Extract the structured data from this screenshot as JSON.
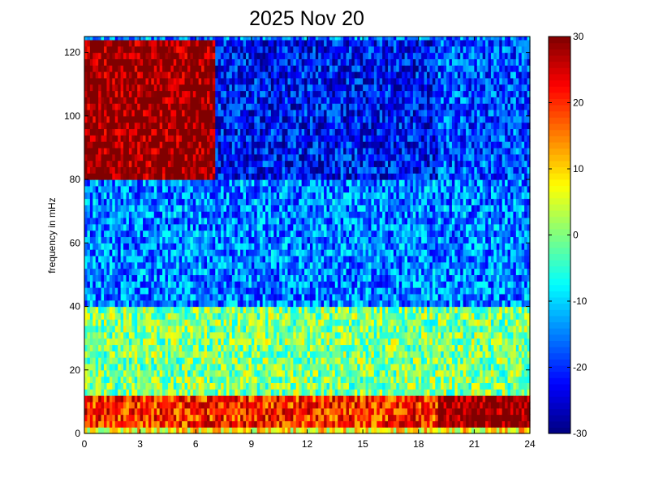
{
  "chart_data": {
    "type": "heatmap",
    "title": "2025 Nov 20",
    "xlabel": "",
    "ylabel": "frequency in mHz",
    "xlim": [
      0,
      24
    ],
    "ylim": [
      0,
      125
    ],
    "x_ticks": [
      0,
      3,
      6,
      9,
      12,
      15,
      18,
      21,
      24
    ],
    "y_ticks": [
      0,
      20,
      40,
      60,
      80,
      100,
      120
    ],
    "colorbar": {
      "range": [
        -30,
        30
      ],
      "ticks": [
        -30,
        -20,
        -10,
        0,
        10,
        20,
        30
      ],
      "colormap": "jet"
    },
    "grid": false,
    "x_bin_hours": 0.15,
    "y_bin_mhz": 2,
    "features": [
      {
        "band_mhz": [
          0,
          2
        ],
        "value": 8
      },
      {
        "band_mhz": [
          2,
          12
        ],
        "hours": [
          0,
          19
        ],
        "value": 20
      },
      {
        "band_mhz": [
          2,
          12
        ],
        "hours": [
          19,
          24
        ],
        "value": 30
      },
      {
        "band_mhz": [
          12,
          40
        ],
        "value": 0
      },
      {
        "band_mhz": [
          40,
          80
        ],
        "value": -15
      },
      {
        "band_mhz": [
          80,
          125
        ],
        "hours": [
          0,
          7
        ],
        "value": 30
      },
      {
        "band_mhz": [
          80,
          125
        ],
        "hours": [
          7,
          19
        ],
        "value": -22
      },
      {
        "band_mhz": [
          80,
          125
        ],
        "hours": [
          19,
          24
        ],
        "value": -18
      }
    ]
  },
  "colors": {
    "axis": "#000000",
    "background": "#ffffff"
  }
}
